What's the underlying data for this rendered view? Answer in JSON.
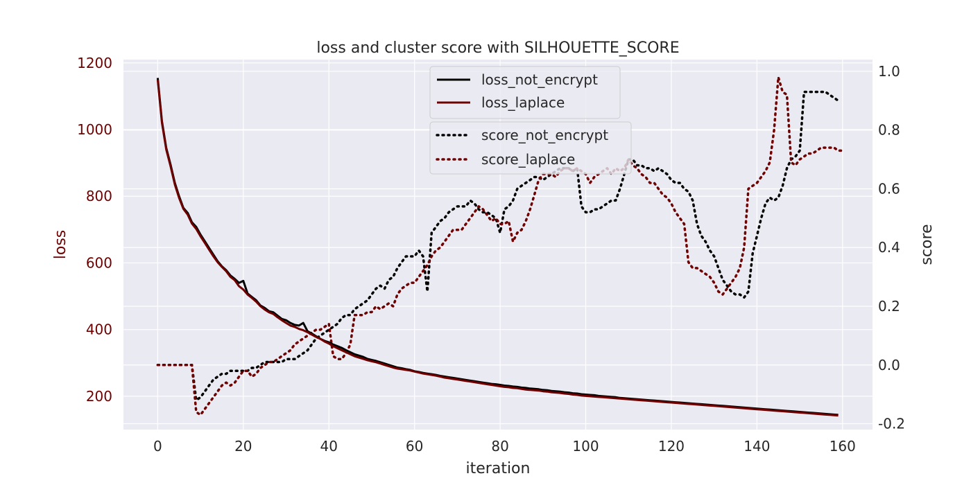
{
  "chart_data": {
    "type": "line",
    "title": "loss and cluster score with SILHOUETTE_SCORE",
    "xlabel": "iteration",
    "ylabel_left": "loss",
    "ylabel_right": "score",
    "xlim": [
      -8,
      167
    ],
    "ylim_left": [
      100,
      1210
    ],
    "ylim_right": [
      -0.22,
      1.04
    ],
    "x_ticks": [
      0,
      20,
      40,
      60,
      80,
      100,
      120,
      140,
      160
    ],
    "y_left_ticks": [
      200,
      400,
      600,
      800,
      1000,
      1200
    ],
    "y_right_ticks": [
      -0.2,
      0.0,
      0.2,
      0.4,
      0.6,
      0.8,
      1.0
    ],
    "y_right_tick_labels": [
      "-0.2",
      "0.0",
      "0.2",
      "0.4",
      "0.6",
      "0.8",
      "1.0"
    ],
    "grid": true,
    "colors": {
      "plot_bg": "#eaeaf2",
      "grid": "#ffffff",
      "left_axis": "#6e0000",
      "text": "#262626"
    },
    "legend_loss": {
      "placement": "top-center",
      "entries": [
        "loss_not_encrypt",
        "loss_laplace"
      ]
    },
    "legend_score": {
      "placement": "upper-center",
      "entries": [
        "score_not_encrypt",
        "score_laplace"
      ]
    },
    "loss_x_start": 0,
    "score_x_start": 0,
    "series": [
      {
        "name": "loss_not_encrypt",
        "axis": "left",
        "style": "solid",
        "color": "#000000",
        "values": [
          1155,
          1025,
          945,
          895,
          840,
          800,
          765,
          750,
          722,
          708,
          685,
          665,
          645,
          625,
          605,
          590,
          578,
          562,
          552,
          540,
          546,
          508,
          498,
          488,
          472,
          465,
          455,
          452,
          442,
          432,
          428,
          420,
          414,
          412,
          420,
          395,
          388,
          380,
          372,
          366,
          362,
          355,
          350,
          345,
          338,
          332,
          326,
          322,
          318,
          312,
          309,
          306,
          302,
          298,
          294,
          290,
          286,
          284,
          281,
          279,
          275,
          273,
          270,
          268,
          266,
          264,
          261,
          259,
          257,
          255,
          253,
          251,
          249,
          247,
          245,
          243,
          241,
          239,
          237,
          236,
          234,
          232,
          231,
          229,
          228,
          226,
          225,
          223,
          222,
          221,
          219,
          218,
          216,
          215,
          214,
          212,
          211,
          209,
          208,
          206,
          205,
          204,
          203,
          201,
          200,
          199,
          198,
          197,
          195,
          194,
          193,
          192,
          191,
          190,
          189,
          188,
          187,
          186,
          185,
          184,
          183,
          182,
          181,
          180,
          179,
          178,
          177,
          176,
          175,
          174,
          173,
          172,
          171,
          170,
          169,
          168,
          167,
          166,
          165,
          164,
          163,
          162,
          161,
          160,
          159,
          158,
          157,
          156,
          155,
          154,
          153,
          152,
          151,
          150,
          149,
          148,
          147,
          146,
          145,
          144
        ]
      },
      {
        "name": "loss_laplace",
        "axis": "left",
        "style": "solid",
        "color": "#6e0000",
        "values": [
          1150,
          1020,
          940,
          890,
          835,
          795,
          762,
          745,
          718,
          702,
          680,
          660,
          640,
          620,
          602,
          588,
          575,
          558,
          548,
          530,
          520,
          505,
          495,
          484,
          470,
          460,
          452,
          447,
          437,
          428,
          420,
          412,
          408,
          402,
          398,
          392,
          385,
          378,
          372,
          364,
          358,
          350,
          344,
          338,
          332,
          326,
          320,
          316,
          312,
          308,
          305,
          302,
          298,
          294,
          290,
          286,
          283,
          281,
          279,
          277,
          274,
          271,
          268,
          266,
          264,
          262,
          259,
          256,
          254,
          252,
          250,
          248,
          246,
          244,
          242,
          240,
          238,
          236,
          234,
          232,
          230,
          228,
          227,
          225,
          224,
          222,
          220,
          219,
          218,
          217,
          215,
          214,
          212,
          211,
          210,
          208,
          207,
          205,
          204,
          202,
          201,
          200,
          199,
          198,
          197,
          196,
          195,
          194,
          193,
          192,
          191,
          190,
          189,
          188,
          187,
          186,
          185,
          184,
          183,
          182,
          181,
          180,
          179,
          178,
          177,
          176,
          175,
          174,
          173,
          172,
          171,
          170,
          169,
          168,
          167,
          166,
          165,
          164,
          163,
          162,
          161,
          160,
          159,
          158,
          157,
          156,
          155,
          154,
          153,
          152,
          151,
          150,
          149,
          148,
          147,
          146,
          145,
          144,
          143,
          142
        ]
      },
      {
        "name": "score_not_encrypt",
        "axis": "right",
        "style": "dotted",
        "color": "#000000",
        "values": [
          0,
          0,
          0,
          0,
          0,
          0,
          0,
          0,
          0,
          -0.12,
          -0.11,
          -0.09,
          -0.07,
          -0.05,
          -0.04,
          -0.03,
          -0.03,
          -0.02,
          -0.02,
          -0.02,
          -0.02,
          -0.02,
          -0.01,
          -0.01,
          0,
          0.01,
          0.01,
          0.01,
          0.01,
          0.01,
          0.02,
          0.02,
          0.02,
          0.03,
          0.04,
          0.05,
          0.07,
          0.09,
          0.1,
          0.11,
          0.12,
          0.13,
          0.14,
          0.16,
          0.17,
          0.17,
          0.19,
          0.2,
          0.21,
          0.22,
          0.24,
          0.26,
          0.27,
          0.26,
          0.29,
          0.3,
          0.33,
          0.35,
          0.37,
          0.37,
          0.37,
          0.39,
          0.37,
          0.25,
          0.45,
          0.47,
          0.49,
          0.5,
          0.52,
          0.53,
          0.54,
          0.54,
          0.54,
          0.56,
          0.55,
          0.53,
          0.52,
          0.52,
          0.51,
          0.5,
          0.45,
          0.53,
          0.54,
          0.56,
          0.6,
          0.61,
          0.62,
          0.63,
          0.64,
          0.64,
          0.63,
          0.64,
          0.65,
          0.66,
          0.67,
          0.67,
          0.67,
          0.66,
          0.67,
          0.54,
          0.52,
          0.52,
          0.53,
          0.53,
          0.54,
          0.55,
          0.56,
          0.56,
          0.6,
          0.65,
          0.7,
          0.7,
          0.68,
          0.68,
          0.67,
          0.67,
          0.66,
          0.67,
          0.66,
          0.65,
          0.63,
          0.62,
          0.62,
          0.6,
          0.59,
          0.56,
          0.48,
          0.44,
          0.42,
          0.39,
          0.37,
          0.33,
          0.29,
          0.27,
          0.25,
          0.24,
          0.24,
          0.23,
          0.25,
          0.38,
          0.44,
          0.5,
          0.55,
          0.57,
          0.56,
          0.57,
          0.61,
          0.67,
          0.7,
          0.71,
          0.73,
          0.93,
          0.93,
          0.93,
          0.93,
          0.93,
          0.93,
          0.92,
          0.91,
          0.9
        ]
      },
      {
        "name": "score_laplace",
        "axis": "right",
        "style": "dotted",
        "color": "#6e0000",
        "values": [
          0,
          0,
          0,
          0,
          0,
          0,
          0,
          0,
          0,
          -0.16,
          -0.17,
          -0.15,
          -0.13,
          -0.11,
          -0.09,
          -0.07,
          -0.06,
          -0.07,
          -0.06,
          -0.04,
          -0.02,
          -0.02,
          -0.04,
          -0.03,
          -0.01,
          0,
          0.01,
          0.01,
          0.02,
          0.03,
          0.04,
          0.05,
          0.07,
          0.08,
          0.09,
          0.1,
          0.11,
          0.12,
          0.12,
          0.13,
          0.14,
          0.03,
          0.02,
          0.02,
          0.04,
          0.07,
          0.17,
          0.17,
          0.17,
          0.18,
          0.18,
          0.2,
          0.19,
          0.2,
          0.21,
          0.2,
          0.24,
          0.26,
          0.27,
          0.28,
          0.28,
          0.3,
          0.32,
          0.34,
          0.37,
          0.39,
          0.4,
          0.42,
          0.44,
          0.46,
          0.46,
          0.46,
          0.48,
          0.5,
          0.52,
          0.54,
          0.53,
          0.51,
          0.49,
          0.5,
          0.48,
          0.48,
          0.49,
          0.42,
          0.45,
          0.46,
          0.49,
          0.53,
          0.58,
          0.63,
          0.65,
          0.65,
          0.65,
          0.64,
          0.66,
          0.67,
          0.67,
          0.66,
          0.67,
          0.66,
          0.65,
          0.62,
          0.64,
          0.65,
          0.66,
          0.67,
          0.65,
          0.67,
          0.66,
          0.67,
          0.7,
          0.68,
          0.67,
          0.65,
          0.64,
          0.62,
          0.62,
          0.6,
          0.58,
          0.57,
          0.55,
          0.52,
          0.5,
          0.48,
          0.35,
          0.33,
          0.33,
          0.32,
          0.31,
          0.3,
          0.28,
          0.25,
          0.24,
          0.26,
          0.28,
          0.3,
          0.33,
          0.4,
          0.6,
          0.61,
          0.62,
          0.64,
          0.66,
          0.69,
          0.8,
          0.98,
          0.93,
          0.92,
          0.69,
          0.68,
          0.7,
          0.71,
          0.72,
          0.72,
          0.73,
          0.74,
          0.74,
          0.74,
          0.74,
          0.73,
          0.73
        ]
      }
    ]
  }
}
